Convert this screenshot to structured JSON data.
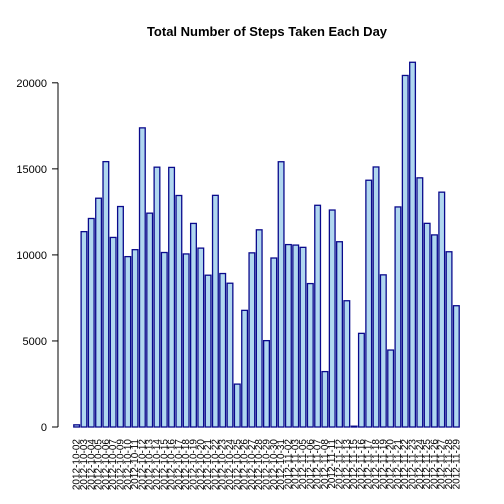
{
  "chart_data": {
    "type": "bar",
    "title": "Total Number of Steps Taken Each Day",
    "xlabel": "",
    "ylabel": "",
    "ylim": [
      0,
      21500
    ],
    "yticks": [
      0,
      5000,
      10000,
      15000,
      20000
    ],
    "grid": false,
    "legend": "none",
    "categories": [
      "2012-10-02",
      "2012-10-03",
      "2012-10-04",
      "2012-10-05",
      "2012-10-06",
      "2012-10-07",
      "2012-10-09",
      "2012-10-10",
      "2012-10-11",
      "2012-10-12",
      "2012-10-13",
      "2012-10-14",
      "2012-10-15",
      "2012-10-16",
      "2012-10-17",
      "2012-10-18",
      "2012-10-19",
      "2012-10-20",
      "2012-10-21",
      "2012-10-22",
      "2012-10-23",
      "2012-10-24",
      "2012-10-25",
      "2012-10-26",
      "2012-10-27",
      "2012-10-28",
      "2012-10-29",
      "2012-10-30",
      "2012-10-31",
      "2012-11-02",
      "2012-11-03",
      "2012-11-05",
      "2012-11-06",
      "2012-11-07",
      "2012-11-08",
      "2012-11-11",
      "2012-11-12",
      "2012-11-13",
      "2012-11-15",
      "2012-11-16",
      "2012-11-17",
      "2012-11-18",
      "2012-11-19",
      "2012-11-20",
      "2012-11-21",
      "2012-11-22",
      "2012-11-23",
      "2012-11-24",
      "2012-11-25",
      "2012-11-26",
      "2012-11-27",
      "2012-11-28",
      "2012-11-29"
    ],
    "values": [
      126,
      11352,
      12116,
      13294,
      15420,
      11015,
      12811,
      9900,
      10304,
      17382,
      12426,
      15098,
      10139,
      15084,
      13452,
      10056,
      11829,
      10395,
      8821,
      13460,
      8918,
      8355,
      2492,
      6778,
      10119,
      11458,
      5018,
      9819,
      15414,
      10600,
      10571,
      10439,
      8334,
      12883,
      3219,
      12608,
      10765,
      7336,
      41,
      5441,
      14339,
      15110,
      8841,
      4472,
      12787,
      20427,
      21194,
      14478,
      11834,
      11162,
      13646,
      10183,
      7047
    ],
    "colors": {
      "fill": "#b0d7ef",
      "stroke": "#0a0a8c"
    }
  }
}
